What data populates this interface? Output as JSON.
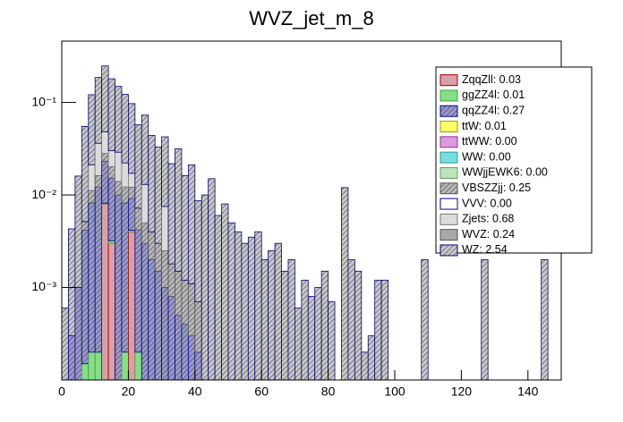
{
  "chart_data": {
    "type": "histogram",
    "title": "WVZ_jet_m_8",
    "bins": [
      0,
      2,
      4,
      6,
      8,
      10,
      12,
      14,
      16,
      18,
      20,
      22,
      24,
      26,
      28,
      30,
      32,
      34,
      36,
      38,
      40,
      42,
      44,
      46,
      48,
      50,
      52,
      54,
      56,
      58,
      60,
      62,
      64,
      66,
      68,
      70,
      72,
      74,
      76,
      78,
      80,
      82,
      84,
      86,
      88,
      90,
      92,
      94,
      96,
      98,
      100,
      102,
      104,
      106,
      108,
      110,
      112,
      114,
      116,
      118,
      120,
      122,
      124,
      126,
      128,
      130,
      132,
      134,
      136,
      138,
      140,
      142,
      144,
      146
    ],
    "xlim": [
      0,
      150
    ],
    "xticks": [
      0,
      20,
      40,
      60,
      80,
      100,
      120,
      140
    ],
    "ylim": [
      0.0001,
      0.46
    ],
    "yticks": [
      {
        "value": 0.001,
        "label": "10⁻³"
      },
      {
        "value": 0.01,
        "label": "10⁻²"
      },
      {
        "value": 0.1,
        "label": "10⁻¹"
      }
    ],
    "log_y": true,
    "stacked": true,
    "series": [
      {
        "name": "ZqqZll: 0.03",
        "color": "#990000",
        "fill": "#d9a0a8",
        "hatch": false,
        "values": [
          0,
          0,
          0,
          0,
          0,
          0,
          0.008,
          0.003,
          0,
          0,
          0.004,
          0,
          0,
          0,
          0,
          0,
          0,
          0,
          0,
          0,
          0,
          0,
          0,
          0,
          0,
          0,
          0,
          0,
          0,
          0,
          0,
          0,
          0,
          0,
          0,
          0,
          0,
          0,
          0,
          0,
          0,
          0,
          0,
          0,
          0,
          0,
          0,
          0,
          0,
          0,
          0,
          0,
          0,
          0,
          0,
          0,
          0,
          0,
          0,
          0,
          0,
          0,
          0,
          0,
          0,
          0,
          0,
          0,
          0,
          0,
          0,
          0,
          0
        ]
      },
      {
        "name": "ggZZ4l: 0.01",
        "color": "#33aa33",
        "fill": "#88dd88",
        "hatch": false,
        "values": [
          0,
          0,
          0,
          0.00015,
          0.0002,
          0.0002,
          0.00015,
          0.0002,
          0,
          0.0002,
          0.00015,
          0.0002,
          0,
          0,
          0,
          0,
          0,
          0,
          0,
          0,
          0,
          0,
          0,
          0,
          0,
          0,
          0,
          0,
          0,
          0,
          0,
          0,
          0,
          0,
          0,
          0,
          0,
          0,
          0,
          0,
          0,
          0,
          0,
          0,
          0,
          0,
          0,
          0,
          0,
          0,
          0,
          0,
          0,
          0,
          0,
          0,
          0,
          0,
          0,
          0,
          0,
          0,
          0,
          0,
          0,
          0,
          0,
          0,
          0,
          0,
          0,
          0,
          0
        ]
      },
      {
        "name": "qqZZ4l: 0.27",
        "color": "#000099",
        "fill": "#9a9ac8",
        "hatch": true,
        "values": [
          0,
          0.0003,
          0.001,
          0.004,
          0.008,
          0.012,
          0.015,
          0.012,
          0.01,
          0.008,
          0.005,
          0.004,
          0.003,
          0.002,
          0.0015,
          0.001,
          0.0008,
          0.0005,
          0.0004,
          0.0003,
          0.0002,
          0,
          0,
          0,
          0,
          0,
          0,
          0,
          0,
          0,
          0,
          0,
          0,
          0,
          0,
          0,
          0,
          0,
          0,
          0,
          0,
          0,
          0,
          0,
          0,
          0,
          0,
          0,
          0,
          0,
          0,
          0,
          0,
          0,
          0,
          0,
          0,
          0,
          0,
          0,
          0,
          0,
          0,
          0,
          0,
          0,
          0,
          0,
          0,
          0,
          0,
          0,
          0
        ]
      },
      {
        "name": "ttW: 0.01",
        "color": "#999900",
        "fill": "#ffff66",
        "hatch": false
      },
      {
        "name": "ttWW: 0.00",
        "color": "#993399",
        "fill": "#dd99dd",
        "hatch": false
      },
      {
        "name": "WW: 0.00",
        "color": "#339999",
        "fill": "#77dddd",
        "hatch": false
      },
      {
        "name": "WWjjEWK6: 0.00",
        "color": "#669966",
        "fill": "#bbe6bb",
        "hatch": false
      },
      {
        "name": "VBSZZjj: 0.25",
        "color": "#555555",
        "fill": "#b8b8b8",
        "hatch": true,
        "values": [
          0,
          0,
          0,
          0.001,
          0.003,
          0.004,
          0.005,
          0.005,
          0.004,
          0.004,
          0.003,
          0.003,
          0.002,
          0.002,
          0.0015,
          0.0015,
          0.001,
          0.001,
          0.0008,
          0.0008,
          0.0005,
          0,
          0,
          0,
          0,
          0,
          0,
          0,
          0,
          0,
          0,
          0,
          0,
          0,
          0,
          0,
          0,
          0,
          0,
          0,
          0,
          0,
          0,
          0,
          0,
          0,
          0,
          0,
          0,
          0,
          0,
          0,
          0,
          0,
          0,
          0,
          0,
          0,
          0,
          0,
          0,
          0,
          0,
          0,
          0,
          0,
          0,
          0,
          0,
          0,
          0,
          0,
          0
        ]
      },
      {
        "name": "VVV: 0.00",
        "color": "#000099",
        "fill": "#ffffff",
        "hatch": false
      },
      {
        "name": "Zjets: 0.68",
        "color": "#777777",
        "fill": "#dcdcdc",
        "hatch": false,
        "values": [
          0,
          0,
          0,
          0,
          0.01,
          0.02,
          0.02,
          0.01,
          0.015,
          0.01,
          0.005,
          0,
          0.008,
          0,
          0,
          0.005,
          0,
          0,
          0,
          0,
          0,
          0,
          0,
          0,
          0,
          0,
          0,
          0,
          0,
          0,
          0,
          0,
          0,
          0,
          0,
          0,
          0,
          0,
          0,
          0,
          0,
          0,
          0,
          0,
          0,
          0,
          0,
          0,
          0,
          0,
          0,
          0,
          0,
          0,
          0,
          0,
          0,
          0,
          0,
          0,
          0,
          0,
          0,
          0,
          0,
          0,
          0,
          0,
          0,
          0,
          0,
          0,
          0
        ]
      },
      {
        "name": "WVZ: 0.24",
        "color": "#555555",
        "fill": "#a8a8a8",
        "hatch": false
      },
      {
        "name": "WZ: 2.54",
        "color": "#000080",
        "fill": "#c8c8c8",
        "hatch": true,
        "values": [
          0.0006,
          0.004,
          0.015,
          0.05,
          0.1,
          0.15,
          0.2,
          0.15,
          0.12,
          0.1,
          0.08,
          0.05,
          0.06,
          0.04,
          0.03,
          0.035,
          0.02,
          0.03,
          0.015,
          0.02,
          0.008,
          0.01,
          0.015,
          0.006,
          0.008,
          0.005,
          0.004,
          0.003,
          0.0035,
          0.004,
          0.002,
          0.0025,
          0.003,
          0.0015,
          0.002,
          0.0006,
          0.0012,
          0.0008,
          0.001,
          0.0015,
          0.0007,
          0,
          0.012,
          0.002,
          0.0015,
          0.0002,
          0.0003,
          0.0012,
          0.0012,
          0,
          0,
          0,
          0,
          0,
          0.002,
          0,
          0,
          0,
          0,
          0,
          0,
          0,
          0,
          0.002,
          0,
          0,
          0,
          0,
          0,
          0,
          0,
          0,
          0.002
        ]
      }
    ]
  }
}
